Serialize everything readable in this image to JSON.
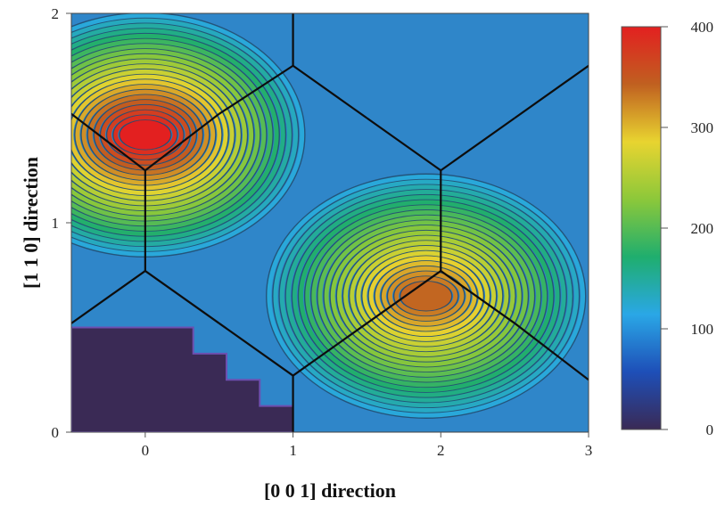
{
  "chart_data": {
    "type": "heatmap",
    "xlabel": "[0 0 1] direction",
    "ylabel": "[1 1 0] direction",
    "xlim": [
      -0.5,
      3.0
    ],
    "ylim": [
      0,
      2
    ],
    "x_ticks": [
      "0",
      "1",
      "2",
      "3"
    ],
    "y_ticks": [
      "0",
      "1",
      "2"
    ],
    "colorbar": {
      "min": 0,
      "max": 400,
      "ticks": [
        "0",
        "100",
        "200",
        "300",
        "400"
      ],
      "colors": [
        "#3a2a55",
        "#1e4fb8",
        "#2aa7e6",
        "#1fae6e",
        "#8cc83a",
        "#e8d430",
        "#c06020",
        "#e32020"
      ]
    },
    "peaks": [
      {
        "x": 0.0,
        "y": 1.42,
        "value": 400
      },
      {
        "x": 1.9,
        "y": 0.65,
        "value": 340
      }
    ],
    "low_region": {
      "x": [
        -0.5,
        1.0
      ],
      "y": [
        0,
        0.5
      ],
      "value": 0
    },
    "zone_boundary_vertices": [
      [
        [
          0.0,
          1.25
        ],
        [
          -0.5,
          1.52
        ]
      ],
      [
        [
          0.0,
          1.25
        ],
        [
          0.5,
          1.52
        ]
      ],
      [
        [
          0.0,
          1.25
        ],
        [
          0.0,
          0.77
        ]
      ],
      [
        [
          0.0,
          0.77
        ],
        [
          -0.5,
          0.52
        ]
      ],
      [
        [
          0.0,
          0.77
        ],
        [
          0.5,
          0.52
        ]
      ],
      [
        [
          0.5,
          1.52
        ],
        [
          1.0,
          1.75
        ]
      ],
      [
        [
          1.0,
          1.75
        ],
        [
          1.0,
          2.0
        ]
      ],
      [
        [
          1.0,
          1.75
        ],
        [
          1.5,
          1.5
        ]
      ],
      [
        [
          1.5,
          1.5
        ],
        [
          2.0,
          1.25
        ]
      ],
      [
        [
          2.0,
          1.25
        ],
        [
          2.5,
          1.5
        ]
      ],
      [
        [
          2.5,
          1.5
        ],
        [
          3.0,
          1.75
        ]
      ],
      [
        [
          2.0,
          1.25
        ],
        [
          2.0,
          0.77
        ]
      ],
      [
        [
          2.0,
          0.77
        ],
        [
          1.5,
          0.52
        ]
      ],
      [
        [
          1.5,
          0.52
        ],
        [
          1.0,
          0.27
        ]
      ],
      [
        [
          1.0,
          0.27
        ],
        [
          0.5,
          0.52
        ]
      ],
      [
        [
          1.0,
          0.27
        ],
        [
          1.0,
          0.0
        ]
      ],
      [
        [
          2.0,
          0.77
        ],
        [
          2.5,
          0.52
        ]
      ],
      [
        [
          2.5,
          0.52
        ],
        [
          3.0,
          0.25
        ]
      ]
    ]
  }
}
